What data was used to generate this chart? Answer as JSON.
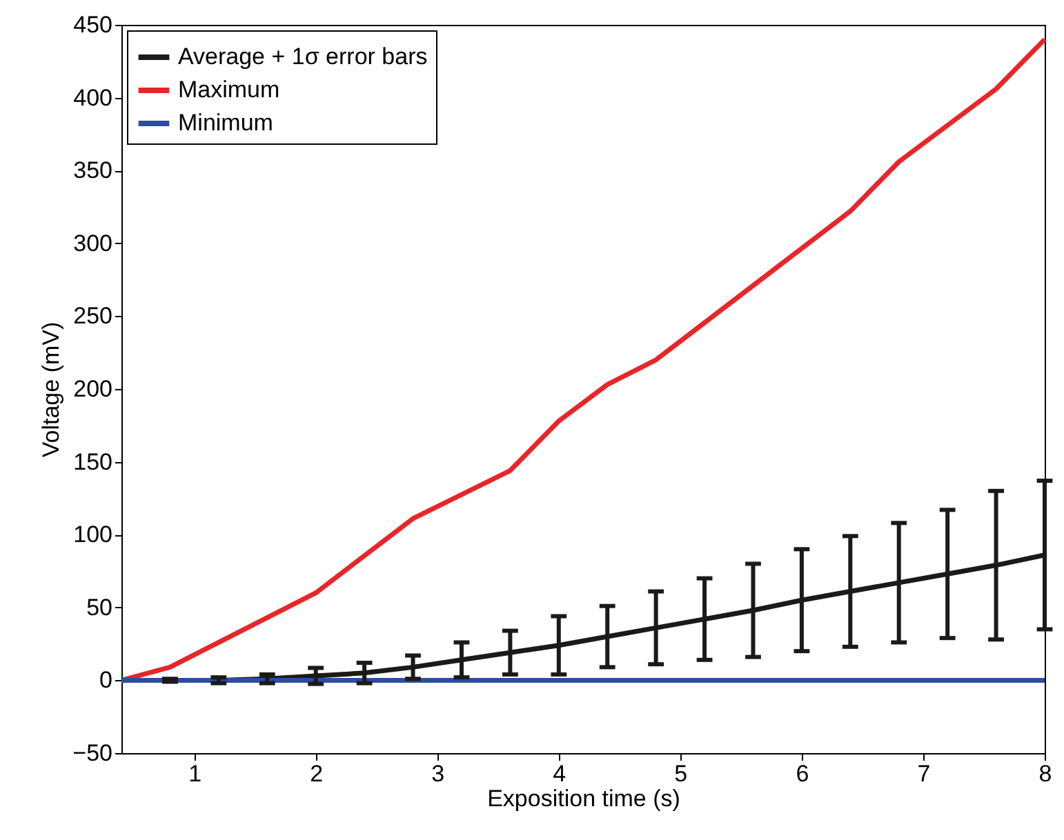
{
  "chart_data": {
    "type": "line",
    "xlabel": "Exposition time (s)",
    "ylabel": "Voltage (mV)",
    "x": [
      0.4,
      0.8,
      1.2,
      1.6,
      2.0,
      2.4,
      2.8,
      3.2,
      3.6,
      4.0,
      4.4,
      4.8,
      5.2,
      5.6,
      6.0,
      6.4,
      6.8,
      7.2,
      7.6,
      8.0
    ],
    "series": [
      {
        "name": "Average + 1σ error bars",
        "color": "#1a1a1a",
        "values": [
          0,
          0,
          0,
          1,
          3,
          5,
          9,
          14,
          19,
          24,
          30,
          36,
          42,
          48,
          55,
          61,
          67,
          73,
          79,
          86
        ],
        "errors": [
          null,
          1,
          2,
          3,
          5.5,
          7,
          8,
          12,
          15,
          20,
          21,
          25,
          28,
          32,
          35,
          38,
          41,
          44,
          51,
          51
        ]
      },
      {
        "name": "Maximum",
        "color": "#e8262a",
        "x": [
          0.4,
          0.8,
          2.0,
          2.8,
          3.6,
          4.0,
          4.4,
          4.8,
          6.4,
          6.8,
          7.6,
          8.0
        ],
        "values": [
          0,
          9,
          60,
          111,
          144,
          178,
          203,
          220,
          322,
          356,
          406,
          440
        ]
      },
      {
        "name": "Minimum",
        "color": "#2e4da0",
        "x": [
          0.4,
          8.0
        ],
        "values": [
          0,
          0
        ]
      }
    ],
    "xlim": [
      0.4,
      8
    ],
    "xticks": [
      1,
      2,
      3,
      4,
      5,
      6,
      7,
      8
    ],
    "ylim": [
      -50,
      450
    ],
    "yticks": [
      -50,
      0,
      50,
      100,
      150,
      200,
      250,
      300,
      350,
      400,
      450
    ],
    "legend": "top left",
    "grid": false,
    "line_style": "solid"
  }
}
